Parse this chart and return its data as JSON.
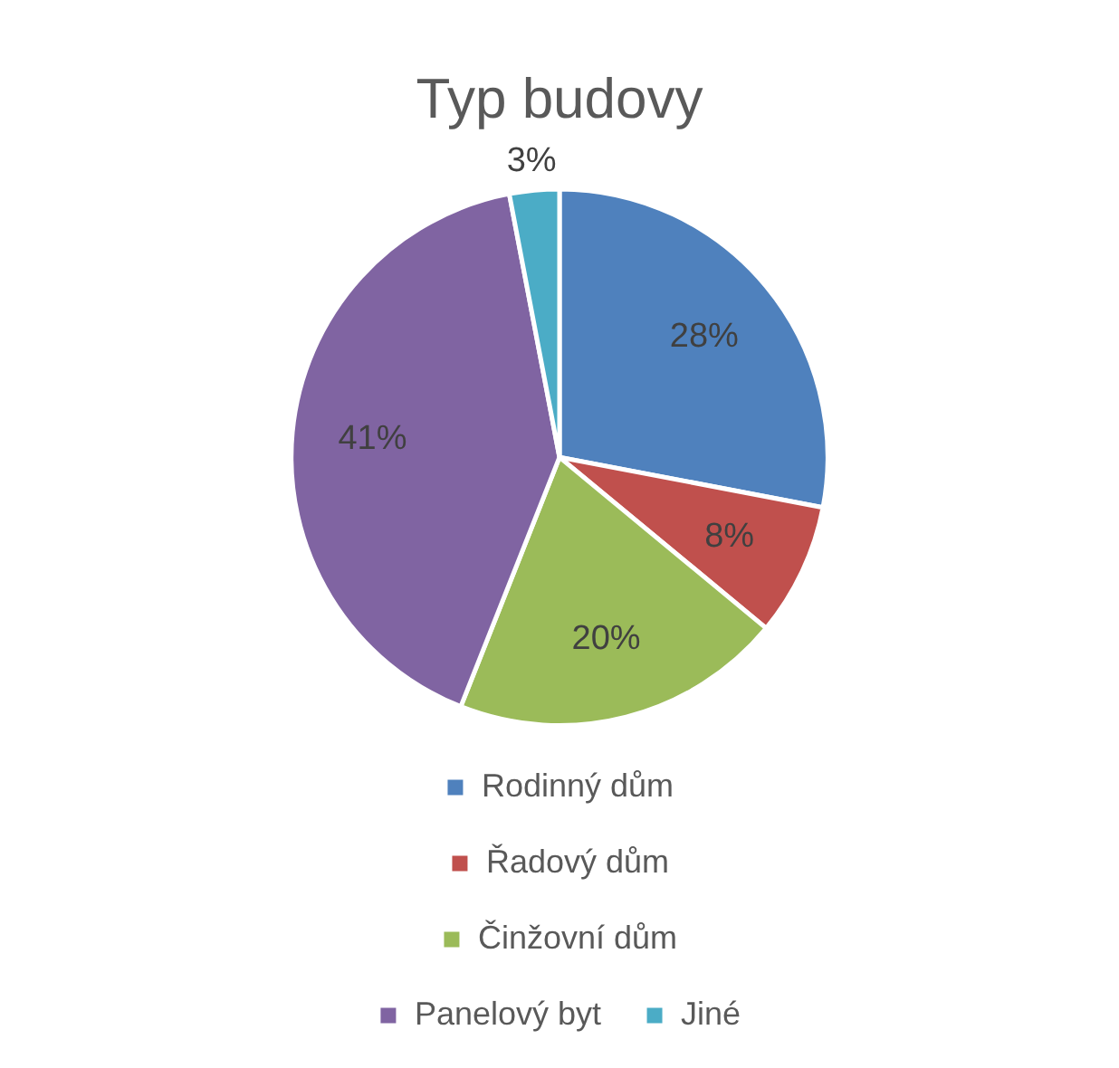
{
  "chart_data": {
    "type": "pie",
    "title": "Typ budovy",
    "categories": [
      "Rodinný dům",
      "Řadový dům",
      "Činžovní dům",
      "Panelový byt",
      "Jiné"
    ],
    "values": [
      28,
      8,
      20,
      41,
      3
    ],
    "value_labels": [
      "28%",
      "8%",
      "20%",
      "41%",
      "3%"
    ],
    "colors": [
      "#4f81bd",
      "#c0504d",
      "#9bbb59",
      "#8064a2",
      "#4bacc6"
    ],
    "legend": "bottom"
  }
}
